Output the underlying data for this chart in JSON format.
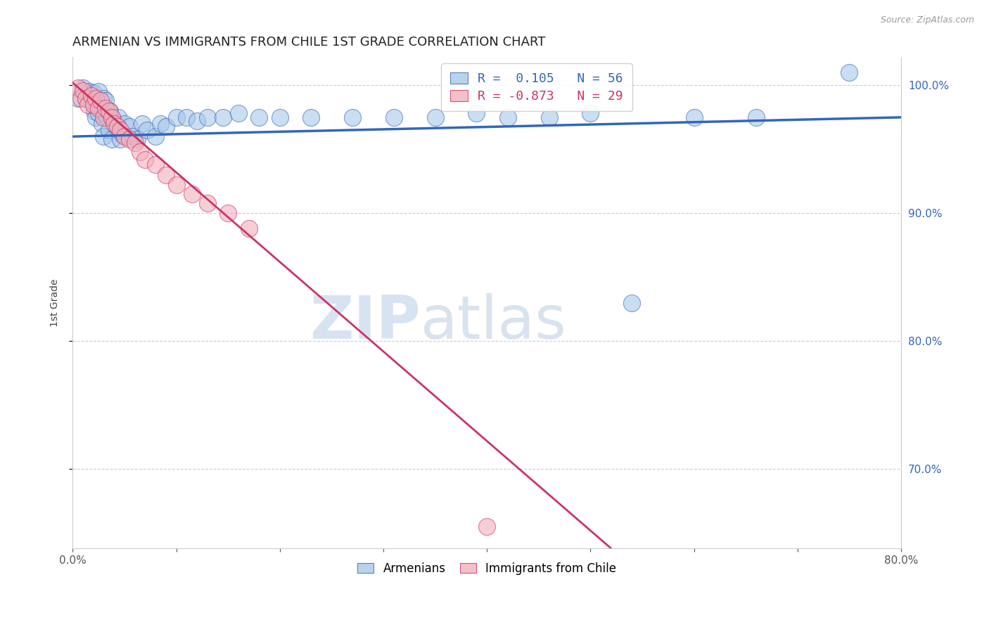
{
  "title": "ARMENIAN VS IMMIGRANTS FROM CHILE 1ST GRADE CORRELATION CHART",
  "source": "Source: ZipAtlas.com",
  "ylabel": "1st Grade",
  "xlim": [
    0.0,
    0.8
  ],
  "ylim": [
    0.638,
    1.022
  ],
  "yticks": [
    0.7,
    0.8,
    0.9,
    1.0
  ],
  "ytick_labels": [
    "70.0%",
    "80.0%",
    "90.0%",
    "100.0%"
  ],
  "xticks": [
    0.0,
    0.1,
    0.2,
    0.3,
    0.4,
    0.5,
    0.6,
    0.7,
    0.8
  ],
  "xtick_labels": [
    "0.0%",
    "",
    "",
    "",
    "",
    "",
    "",
    "",
    "80.0%"
  ],
  "blue_R": 0.105,
  "blue_N": 56,
  "pink_R": -0.873,
  "pink_N": 29,
  "blue_color": "#a8c8e8",
  "pink_color": "#f0b0bc",
  "blue_line_color": "#3366bb",
  "pink_line_color": "#cc3366",
  "legend_label_blue": "Armenians",
  "legend_label_pink": "Immigrants from Chile",
  "watermark_zip": "ZIP",
  "watermark_atlas": "atlas",
  "blue_points_x": [
    0.005,
    0.01,
    0.013,
    0.016,
    0.018,
    0.02,
    0.021,
    0.022,
    0.023,
    0.025,
    0.025,
    0.027,
    0.028,
    0.03,
    0.03,
    0.031,
    0.032,
    0.033,
    0.035,
    0.036,
    0.037,
    0.038,
    0.04,
    0.042,
    0.044,
    0.046,
    0.048,
    0.05,
    0.055,
    0.058,
    0.062,
    0.067,
    0.072,
    0.08,
    0.085,
    0.09,
    0.1,
    0.11,
    0.12,
    0.13,
    0.145,
    0.16,
    0.18,
    0.2,
    0.23,
    0.27,
    0.31,
    0.35,
    0.39,
    0.42,
    0.46,
    0.5,
    0.54,
    0.6,
    0.66,
    0.75
  ],
  "blue_points_y": [
    0.99,
    0.998,
    0.99,
    0.995,
    0.988,
    0.994,
    0.98,
    0.975,
    0.985,
    0.978,
    0.995,
    0.982,
    0.97,
    0.99,
    0.96,
    0.978,
    0.988,
    0.975,
    0.965,
    0.98,
    0.975,
    0.958,
    0.972,
    0.968,
    0.975,
    0.958,
    0.962,
    0.97,
    0.968,
    0.96,
    0.958,
    0.97,
    0.965,
    0.96,
    0.97,
    0.968,
    0.975,
    0.975,
    0.972,
    0.975,
    0.975,
    0.978,
    0.975,
    0.975,
    0.975,
    0.975,
    0.975,
    0.975,
    0.978,
    0.975,
    0.975,
    0.978,
    0.83,
    0.975,
    0.975,
    1.01
  ],
  "pink_points_x": [
    0.005,
    0.008,
    0.01,
    0.013,
    0.015,
    0.018,
    0.02,
    0.022,
    0.025,
    0.027,
    0.03,
    0.032,
    0.035,
    0.038,
    0.04,
    0.043,
    0.046,
    0.05,
    0.055,
    0.06,
    0.065,
    0.07,
    0.08,
    0.09,
    0.1,
    0.115,
    0.13,
    0.15,
    0.17
  ],
  "pink_points_y": [
    0.998,
    0.99,
    0.996,
    0.99,
    0.985,
    0.992,
    0.985,
    0.99,
    0.982,
    0.988,
    0.975,
    0.982,
    0.98,
    0.975,
    0.97,
    0.968,
    0.965,
    0.96,
    0.958,
    0.955,
    0.948,
    0.942,
    0.938,
    0.93,
    0.922,
    0.915,
    0.908,
    0.9,
    0.888
  ],
  "pink_outlier_x": [
    0.4
  ],
  "pink_outlier_y": [
    0.655
  ],
  "blue_trend_x": [
    0.0,
    0.8
  ],
  "blue_trend_y": [
    0.96,
    0.975
  ],
  "pink_trend_x": [
    0.0,
    0.52
  ],
  "pink_trend_y": [
    1.002,
    0.638
  ]
}
